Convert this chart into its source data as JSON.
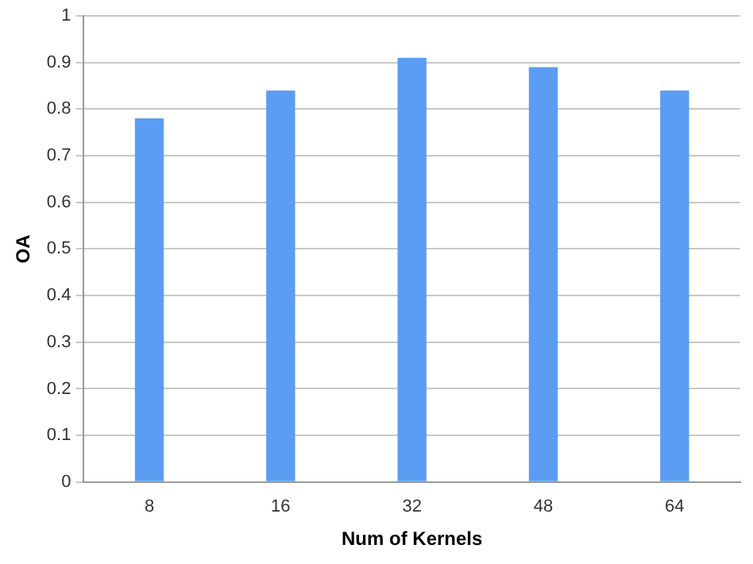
{
  "chart_data": {
    "type": "bar",
    "xlabel": "Num of Kernels",
    "ylabel": "OA",
    "categories": [
      "8",
      "16",
      "32",
      "48",
      "64"
    ],
    "values": [
      0.78,
      0.84,
      0.91,
      0.89,
      0.84
    ],
    "color": "#5b9df2",
    "ylim": [
      0,
      1
    ],
    "yticks": [
      0,
      0.1,
      0.2,
      0.3,
      0.4,
      0.5,
      0.6,
      0.7,
      0.8,
      0.9,
      1
    ],
    "grid": "y",
    "legend": false
  }
}
